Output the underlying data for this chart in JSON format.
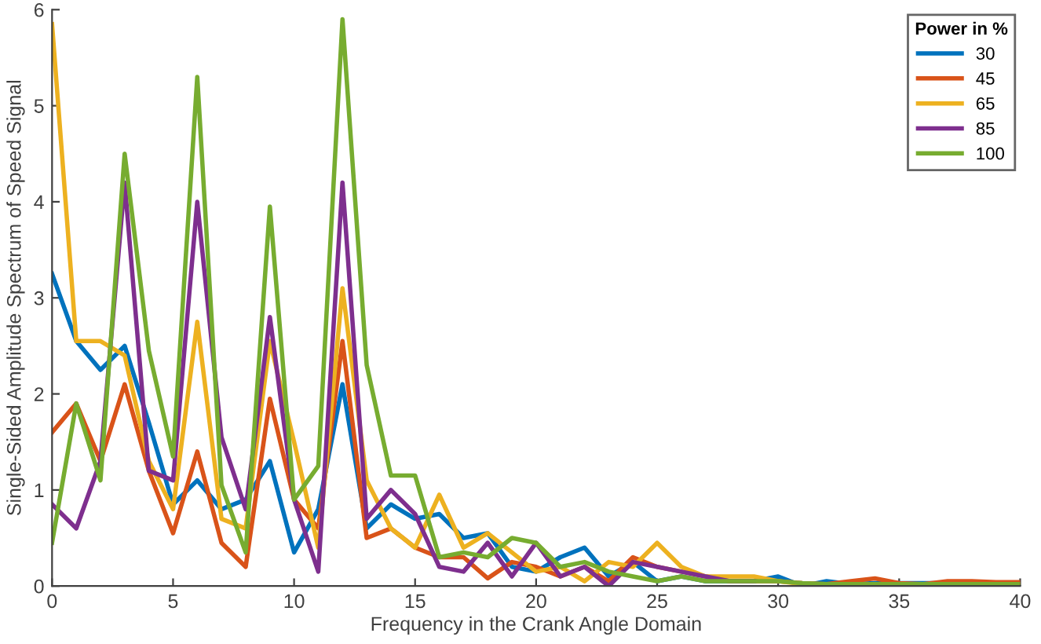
{
  "chart_data": {
    "type": "line",
    "xlabel": "Frequency in the Crank Angle Domain",
    "ylabel": "Single-Sided Amplitude Spectrum of Speed Signal",
    "legend_title": "Power in %",
    "legend": "top right",
    "grid": false,
    "marker": "none",
    "line_style": "solid",
    "x": [
      0,
      1,
      2,
      3,
      4,
      5,
      6,
      7,
      8,
      9,
      10,
      11,
      12,
      13,
      14,
      15,
      16,
      17,
      18,
      19,
      20,
      21,
      22,
      23,
      24,
      25,
      26,
      27,
      28,
      29,
      30,
      31,
      32,
      33,
      34,
      35,
      36,
      37,
      38,
      39,
      40
    ],
    "xlim": [
      0,
      40
    ],
    "xticks": [
      0,
      5,
      10,
      15,
      20,
      25,
      30,
      35,
      40
    ],
    "ylim": [
      0,
      6
    ],
    "yticks": [
      0,
      1,
      2,
      3,
      4,
      5,
      6
    ],
    "series": [
      {
        "name": "30",
        "color": "#0072bd",
        "values": [
          3.25,
          2.55,
          2.25,
          2.5,
          1.7,
          0.85,
          1.1,
          0.8,
          0.9,
          1.3,
          0.35,
          0.8,
          2.1,
          0.6,
          0.85,
          0.7,
          0.75,
          0.5,
          0.55,
          0.2,
          0.15,
          0.3,
          0.4,
          0.1,
          0.25,
          0.05,
          0.1,
          0.05,
          0.05,
          0.05,
          0.1,
          0,
          0.05,
          0.02,
          0.03,
          0.03,
          0.03,
          0.03,
          null,
          null,
          null
        ]
      },
      {
        "name": "45",
        "color": "#d95319",
        "values": [
          1.6,
          1.9,
          1.3,
          2.1,
          1.2,
          0.55,
          1.4,
          0.45,
          0.2,
          1.95,
          0.9,
          0.6,
          2.55,
          0.5,
          0.6,
          0.4,
          0.3,
          0.3,
          0.08,
          0.25,
          0.2,
          0.1,
          0.2,
          0.05,
          0.3,
          0.2,
          0.15,
          0.1,
          0.05,
          0.05,
          0.05,
          0.03,
          0.02,
          0.05,
          0.08,
          0.03,
          0.02,
          0.05,
          0.05,
          0.04,
          0.04
        ]
      },
      {
        "name": "65",
        "color": "#edb120",
        "values": [
          5.85,
          2.55,
          2.55,
          2.4,
          1.3,
          0.8,
          2.75,
          0.7,
          0.6,
          2.55,
          1.5,
          0.4,
          3.1,
          1.1,
          0.6,
          0.4,
          0.95,
          0.4,
          0.55,
          0.35,
          0.15,
          0.2,
          0.05,
          0.25,
          0.2,
          0.45,
          0.2,
          0.1,
          0.1,
          0.1,
          0.05,
          0.02,
          0.02,
          null,
          null,
          null,
          null,
          null,
          null,
          null,
          null
        ]
      },
      {
        "name": "85",
        "color": "#7e2f8e",
        "values": [
          0.85,
          0.6,
          1.3,
          4.2,
          1.2,
          1.1,
          4.0,
          1.55,
          0.8,
          2.8,
          0.9,
          0.15,
          4.2,
          0.7,
          1.0,
          0.75,
          0.2,
          0.15,
          0.45,
          0.1,
          0.45,
          0.1,
          0.2,
          0.0,
          0.25,
          0.2,
          0.15,
          0.1,
          0.05,
          0.05,
          null,
          null,
          null,
          null,
          null,
          null,
          null,
          null,
          null,
          null,
          null
        ]
      },
      {
        "name": "100",
        "color": "#77ac30",
        "values": [
          0.45,
          1.9,
          1.1,
          4.5,
          2.45,
          1.35,
          5.3,
          1.05,
          0.35,
          3.95,
          0.9,
          1.25,
          5.9,
          2.3,
          1.15,
          1.15,
          0.3,
          0.35,
          0.3,
          0.5,
          0.45,
          0.2,
          0.25,
          0.15,
          0.1,
          0.05,
          0.1,
          0.05,
          0.05,
          0.05,
          0.05,
          0.03,
          0.02,
          0.02,
          0.02,
          0.02,
          0.02,
          0.02,
          0.02,
          0.02,
          0.02
        ]
      }
    ]
  }
}
